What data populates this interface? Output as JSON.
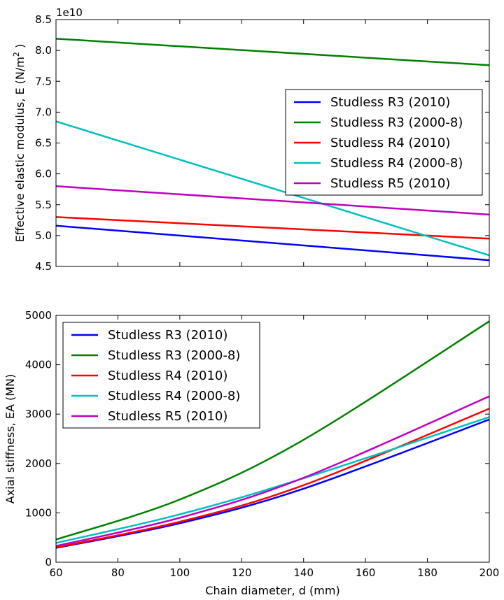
{
  "chart_data": [
    {
      "type": "line",
      "xlim": [
        60,
        200
      ],
      "ylim": [
        4.5,
        8.5
      ],
      "y_offset_text": "1e10",
      "yticks": [
        "4.5",
        "5.0",
        "5.5",
        "6.0",
        "6.5",
        "7.0",
        "7.5",
        "8.0",
        "8.5"
      ],
      "xticks_visible": false,
      "ylabel_prefix": "Effective elastic modulus, E (N/m",
      "ylabel_sup": "2",
      "ylabel_suffix": " )",
      "legend": "center-right",
      "series": [
        {
          "name": "Studless R3 (2010)",
          "color": "#0000ff",
          "x": [
            60,
            200
          ],
          "y": [
            5.16,
            4.6
          ]
        },
        {
          "name": "Studless R3 (2000-8)",
          "color": "#008000",
          "x": [
            60,
            200
          ],
          "y": [
            8.19,
            7.76
          ]
        },
        {
          "name": "Studless R4 (2010)",
          "color": "#ff0000",
          "x": [
            60,
            200
          ],
          "y": [
            5.3,
            4.95
          ]
        },
        {
          "name": "Studless R4 (2000-8)",
          "color": "#00bfbf",
          "x": [
            60,
            200
          ],
          "y": [
            6.85,
            4.68
          ]
        },
        {
          "name": "Studless R5 (2010)",
          "color": "#bf00bf",
          "x": [
            60,
            200
          ],
          "y": [
            5.8,
            5.34
          ]
        }
      ]
    },
    {
      "type": "line",
      "xlim": [
        60,
        200
      ],
      "ylim": [
        0,
        5000
      ],
      "xticks": [
        "60",
        "80",
        "100",
        "120",
        "140",
        "160",
        "180",
        "200"
      ],
      "yticks": [
        "0",
        "1000",
        "2000",
        "3000",
        "4000",
        "5000"
      ],
      "xlabel": "Chain diameter, d (mm)",
      "ylabel": "Axial stiffness, EA (MN)",
      "legend": "top-left",
      "series": [
        {
          "name": "Studless R3 (2010)",
          "color": "#0000ff",
          "x": [
            60,
            100,
            140,
            200
          ],
          "y": [
            290,
            790,
            1490,
            2890
          ]
        },
        {
          "name": "Studless R3 (2000-8)",
          "color": "#008000",
          "x": [
            60,
            100,
            140,
            200
          ],
          "y": [
            460,
            1270,
            2480,
            4880
          ]
        },
        {
          "name": "Studless R4 (2010)",
          "color": "#ff0000",
          "x": [
            60,
            100,
            140,
            200
          ],
          "y": [
            300,
            820,
            1560,
            3110
          ]
        },
        {
          "name": "Studless R4 (2000-8)",
          "color": "#00bfbf",
          "x": [
            60,
            100,
            140,
            200
          ],
          "y": [
            390,
            970,
            1700,
            2940
          ]
        },
        {
          "name": "Studless R5 (2010)",
          "color": "#bf00bf",
          "x": [
            60,
            100,
            140,
            200
          ],
          "y": [
            330,
            900,
            1710,
            3360
          ]
        }
      ]
    }
  ]
}
